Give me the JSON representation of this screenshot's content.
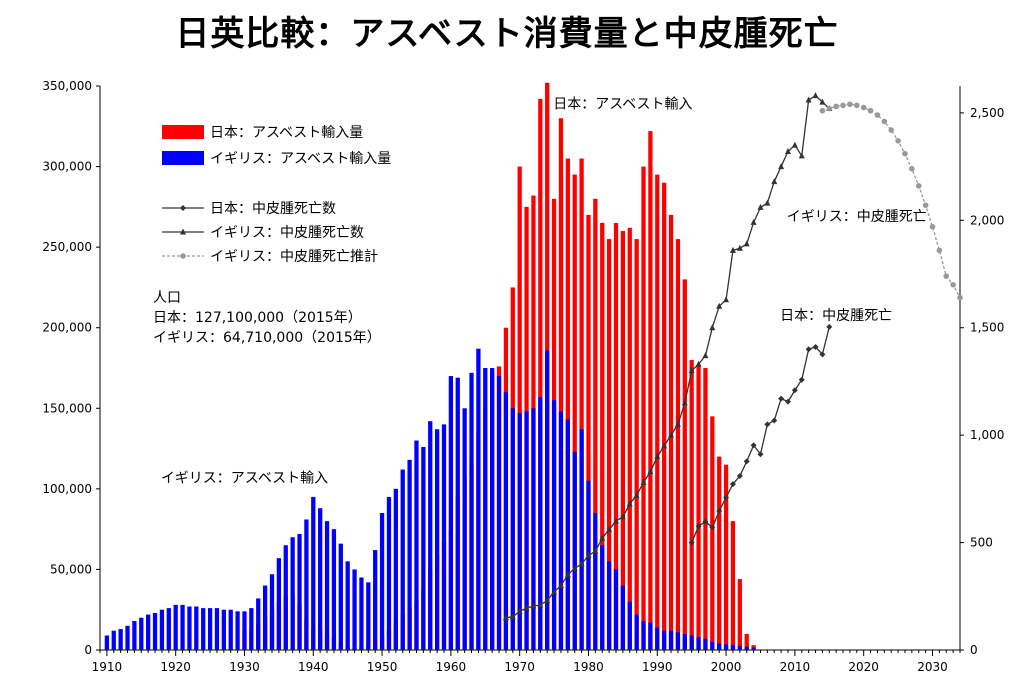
{
  "title": "日英比較：アスベスト消費量と中皮腫死亡",
  "chart_data": {
    "type": "bar",
    "title": "日英比較：アスベスト消費量と中皮腫死亡",
    "xlim": [
      1909,
      2034
    ],
    "ylim_left": [
      0,
      350000
    ],
    "ylim_right": [
      0,
      2625
    ],
    "x_ticks": [
      1910,
      1920,
      1930,
      1940,
      1950,
      1960,
      1970,
      1980,
      1990,
      2000,
      2010,
      2020,
      2030
    ],
    "left_ticks": [
      0,
      50000,
      100000,
      150000,
      200000,
      250000,
      300000,
      350000
    ],
    "left_tick_labels": [
      "0",
      "50,000",
      "100,000",
      "150,000",
      "200,000",
      "250,000",
      "300,000",
      "350,000"
    ],
    "right_ticks": [
      0,
      500,
      1000,
      1500,
      2000,
      2500
    ],
    "right_tick_labels": [
      "0",
      "500",
      "1,000",
      "1,500",
      "2,000",
      "2,500"
    ],
    "legend": [
      {
        "label": "日本：アスベスト輸入量",
        "kind": "bar",
        "color": "#ff0000"
      },
      {
        "label": "イギリス：アスベスト輸入量",
        "kind": "bar",
        "color": "#0000ff"
      },
      {
        "label": "日本：中皮腫死亡数",
        "kind": "line-diamond",
        "color": "#333333"
      },
      {
        "label": "イギリス：中皮腫死亡数",
        "kind": "line-triangle",
        "color": "#333333"
      },
      {
        "label": "イギリス：中皮腫死亡推計",
        "kind": "dotted-circle",
        "color": "#999999"
      }
    ],
    "population": {
      "heading": "人口",
      "japan": "日本：127,100,000（2015年）",
      "uk": "イギリス：64,710,000（2015年）"
    },
    "annotations": [
      {
        "text": "日本：アスベスト輸入",
        "x": 1985,
        "y": 339000
      },
      {
        "text": "イギリス：アスベスト輸入",
        "x": 1930,
        "y": 107000
      },
      {
        "text": "イギリス：中皮腫死亡",
        "x": 2019,
        "y": 2020
      },
      {
        "text": "日本：中皮腫死亡",
        "x": 2016,
        "y": 1560
      }
    ],
    "series": [
      {
        "name": "日本：アスベスト輸入量",
        "axis": "left",
        "color": "#ff0000",
        "x": [
          1930,
          1931,
          1932,
          1933,
          1934,
          1935,
          1936,
          1937,
          1938,
          1939,
          1940,
          1941,
          1942,
          1943,
          1944,
          1945,
          1946,
          1947,
          1948,
          1949,
          1950,
          1951,
          1952,
          1953,
          1954,
          1955,
          1956,
          1957,
          1958,
          1959,
          1960,
          1961,
          1962,
          1963,
          1964,
          1965,
          1966,
          1967,
          1968,
          1969,
          1970,
          1971,
          1972,
          1973,
          1974,
          1975,
          1976,
          1977,
          1978,
          1979,
          1980,
          1981,
          1982,
          1983,
          1984,
          1985,
          1986,
          1987,
          1988,
          1989,
          1990,
          1991,
          1992,
          1993,
          1994,
          1995,
          1996,
          1997,
          1998,
          1999,
          2000,
          2001,
          2002,
          2003,
          2004
        ],
        "values": [
          12000,
          13000,
          16000,
          20000,
          25000,
          30000,
          33000,
          34000,
          28000,
          18000,
          14000,
          12000,
          10000,
          8000,
          5000,
          2000,
          1000,
          2000,
          4000,
          6000,
          8000,
          12000,
          17000,
          22000,
          26000,
          30000,
          40000,
          50000,
          60000,
          67000,
          75000,
          95000,
          107000,
          116000,
          135000,
          150000,
          172000,
          176000,
          200000,
          225000,
          300000,
          275000,
          282000,
          342000,
          352000,
          280000,
          330000,
          305000,
          295000,
          305000,
          270000,
          280000,
          265000,
          255000,
          265000,
          260000,
          262000,
          255000,
          300000,
          322000,
          295000,
          290000,
          270000,
          255000,
          230000,
          180000,
          177000,
          175000,
          145000,
          120000,
          115000,
          80000,
          44000,
          10000,
          3000
        ]
      },
      {
        "name": "イギリス：アスベスト輸入量",
        "axis": "left",
        "color": "#0000ff",
        "x": [
          1910,
          1911,
          1912,
          1913,
          1914,
          1915,
          1916,
          1917,
          1918,
          1919,
          1920,
          1921,
          1922,
          1923,
          1924,
          1925,
          1926,
          1927,
          1928,
          1929,
          1930,
          1931,
          1932,
          1933,
          1934,
          1935,
          1936,
          1937,
          1938,
          1939,
          1940,
          1941,
          1942,
          1943,
          1944,
          1945,
          1946,
          1947,
          1948,
          1949,
          1950,
          1951,
          1952,
          1953,
          1954,
          1955,
          1956,
          1957,
          1958,
          1959,
          1960,
          1961,
          1962,
          1963,
          1964,
          1965,
          1966,
          1967,
          1968,
          1969,
          1970,
          1971,
          1972,
          1973,
          1974,
          1975,
          1976,
          1977,
          1978,
          1979,
          1980,
          1981,
          1982,
          1983,
          1984,
          1985,
          1986,
          1987,
          1988,
          1989,
          1990,
          1991,
          1992,
          1993,
          1994,
          1995,
          1996,
          1997,
          1998,
          1999,
          2000,
          2001,
          2002,
          2003,
          2004
        ],
        "values": [
          9000,
          12000,
          13000,
          15000,
          18000,
          20000,
          22000,
          23000,
          25000,
          26000,
          28000,
          28000,
          27000,
          27000,
          26000,
          26000,
          26000,
          25000,
          25000,
          24000,
          24000,
          26000,
          32000,
          40000,
          47000,
          57000,
          65000,
          70000,
          72000,
          81000,
          95000,
          88000,
          80000,
          75000,
          66000,
          55000,
          50000,
          45000,
          42000,
          62000,
          85000,
          95000,
          100000,
          112000,
          118000,
          130000,
          126000,
          142000,
          137000,
          140000,
          170000,
          169000,
          150000,
          172000,
          187000,
          175000,
          175000,
          170000,
          160000,
          150000,
          147000,
          148000,
          150000,
          157000,
          186000,
          155000,
          148000,
          143000,
          123000,
          137000,
          105000,
          85000,
          65000,
          55000,
          50000,
          40000,
          30000,
          22000,
          18000,
          17000,
          14000,
          12000,
          12000,
          11000,
          10000,
          9000,
          8000,
          7000,
          5000,
          4000,
          3500,
          3000,
          2500,
          2000,
          1500
        ]
      },
      {
        "name": "日本：中皮腫死亡数",
        "axis": "right",
        "color": "#333333",
        "marker": "diamond",
        "x": [
          1995,
          1996,
          1997,
          1998,
          1999,
          2000,
          2001,
          2002,
          2003,
          2004,
          2005,
          2006,
          2007,
          2008,
          2009,
          2010,
          2011,
          2012,
          2013,
          2014,
          2015
        ],
        "values": [
          500,
          576,
          597,
          570,
          647,
          710,
          772,
          810,
          878,
          953,
          911,
          1050,
          1068,
          1170,
          1156,
          1209,
          1258,
          1400,
          1410,
          1376,
          1504
        ]
      },
      {
        "name": "イギリス：中皮腫死亡数",
        "axis": "right",
        "color": "#333333",
        "marker": "triangle",
        "x": [
          1968,
          1969,
          1970,
          1971,
          1972,
          1973,
          1974,
          1975,
          1976,
          1977,
          1978,
          1979,
          1980,
          1981,
          1982,
          1983,
          1984,
          1985,
          1986,
          1987,
          1988,
          1989,
          1990,
          1991,
          1992,
          1993,
          1994,
          1995,
          1996,
          1997,
          1998,
          1999,
          2000,
          2001,
          2002,
          2003,
          2004,
          2005,
          2006,
          2007,
          2008,
          2009,
          2010,
          2011,
          2012,
          2013,
          2014,
          2015
        ],
        "values": [
          150,
          155,
          180,
          195,
          205,
          210,
          230,
          270,
          300,
          350,
          380,
          400,
          440,
          460,
          520,
          560,
          600,
          620,
          680,
          720,
          780,
          830,
          900,
          950,
          1000,
          1050,
          1150,
          1300,
          1330,
          1370,
          1500,
          1600,
          1630,
          1860,
          1870,
          1890,
          1990,
          2060,
          2080,
          2180,
          2250,
          2320,
          2350,
          2300,
          2560,
          2580,
          2550,
          2520
        ]
      },
      {
        "name": "イギリス：中皮腫死亡推計",
        "axis": "right",
        "color": "#999999",
        "marker": "circle",
        "x": [
          2014,
          2015,
          2016,
          2017,
          2018,
          2019,
          2020,
          2021,
          2022,
          2023,
          2024,
          2025,
          2026,
          2027,
          2028,
          2029,
          2030,
          2031,
          2032,
          2033,
          2034
        ],
        "values": [
          2510,
          2520,
          2530,
          2535,
          2540,
          2535,
          2525,
          2510,
          2490,
          2460,
          2420,
          2370,
          2310,
          2240,
          2160,
          2070,
          1970,
          1860,
          1740,
          1700,
          1640
        ]
      }
    ]
  }
}
